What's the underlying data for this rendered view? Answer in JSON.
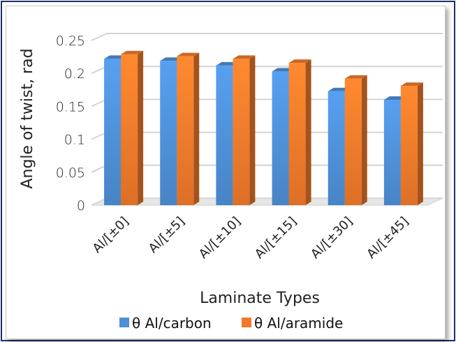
{
  "chart_data": {
    "type": "bar",
    "categories": [
      "Al/[±0]",
      "Al/[±5]",
      "Al/[±10]",
      "Al/[±15]",
      "Al/[±30]",
      "Al/[±45]"
    ],
    "series": [
      {
        "name": "θ Al/carbon",
        "values": [
          0.222,
          0.219,
          0.212,
          0.203,
          0.173,
          0.16
        ],
        "color": "#4e8fd6"
      },
      {
        "name": "θ Al/aramide",
        "values": [
          0.229,
          0.226,
          0.222,
          0.216,
          0.192,
          0.181
        ],
        "color": "#f07a2a"
      }
    ],
    "title": "",
    "xlabel": "Laminate Types",
    "ylabel": "Angle of twist, rad",
    "ylim": [
      0,
      0.25
    ],
    "yticks": [
      "0",
      "0.05",
      "0.1",
      "0.15",
      "0.2",
      "0.25"
    ],
    "grid": true,
    "legend_position": "bottom"
  }
}
